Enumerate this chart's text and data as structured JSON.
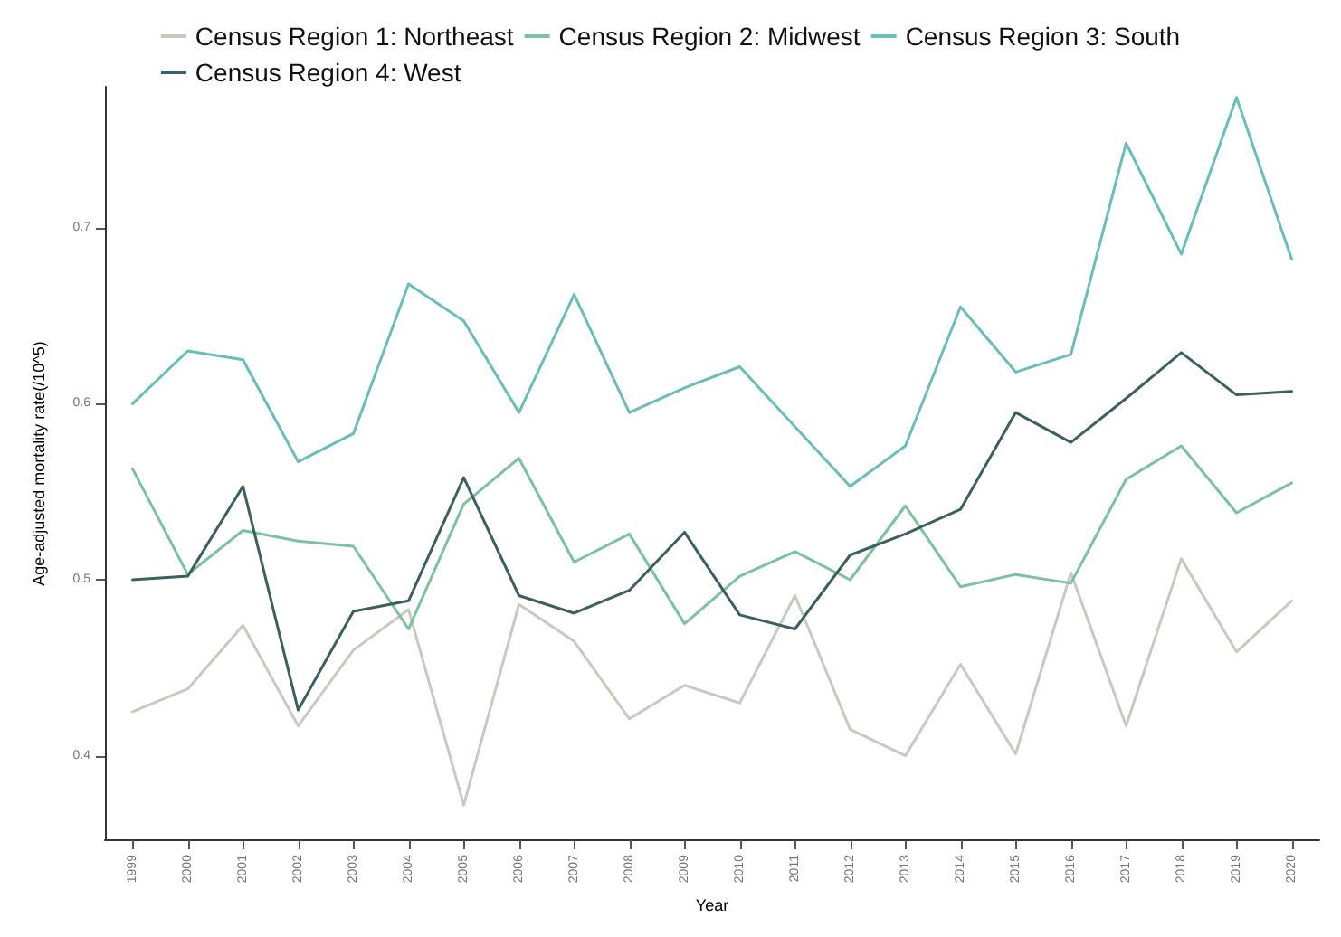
{
  "chart_data": {
    "type": "line",
    "xlabel": "Year",
    "ylabel": "Age-adjusted mortality rate(/10^5)",
    "categories": [
      "1999",
      "2000",
      "2001",
      "2002",
      "2003",
      "2004",
      "2005",
      "2006",
      "2007",
      "2008",
      "2009",
      "2010",
      "2011",
      "2012",
      "2013",
      "2014",
      "2015",
      "2016",
      "2017",
      "2018",
      "2019",
      "2020"
    ],
    "series": [
      {
        "name": "Census Region 1: Northeast",
        "color": "#c5cbbf",
        "values": [
          0.425,
          0.438,
          0.474,
          0.417,
          0.46,
          0.483,
          0.372,
          0.486,
          0.465,
          0.421,
          0.44,
          0.43,
          0.491,
          0.415,
          0.4,
          0.452,
          0.401,
          0.504,
          0.417,
          0.512,
          0.459,
          0.488
        ]
      },
      {
        "name": "Census Region 2: Midwest",
        "color": "#7cc29f",
        "values": [
          0.563,
          0.503,
          0.528,
          0.522,
          0.519,
          0.472,
          0.543,
          0.569,
          0.51,
          0.526,
          0.475,
          0.502,
          0.516,
          0.5,
          0.542,
          0.496,
          0.503,
          0.498,
          0.557,
          0.576,
          0.538,
          0.555
        ]
      },
      {
        "name": "Census Region 3: South",
        "color": "#6bbdba",
        "values": [
          0.6,
          0.63,
          0.625,
          0.567,
          0.583,
          0.668,
          0.647,
          0.595,
          0.662,
          0.595,
          0.609,
          0.621,
          0.587,
          0.553,
          0.576,
          0.655,
          0.618,
          0.628,
          0.748,
          0.685,
          0.774,
          0.682
        ]
      },
      {
        "name": "Census Region 4: West",
        "color": "#3d5f60",
        "values": [
          0.5,
          0.502,
          0.553,
          0.426,
          0.482,
          0.488,
          0.558,
          0.491,
          0.481,
          0.494,
          0.527,
          0.48,
          0.472,
          0.514,
          0.526,
          0.54,
          0.595,
          0.578,
          0.603,
          0.629,
          0.605,
          0.607
        ]
      }
    ],
    "ylim": [
      0.352,
      0.78
    ],
    "yticks": [
      0.4,
      0.5,
      0.6,
      0.7
    ],
    "grid": false,
    "legend": "top",
    "marker": "none",
    "line_style": "solid"
  }
}
